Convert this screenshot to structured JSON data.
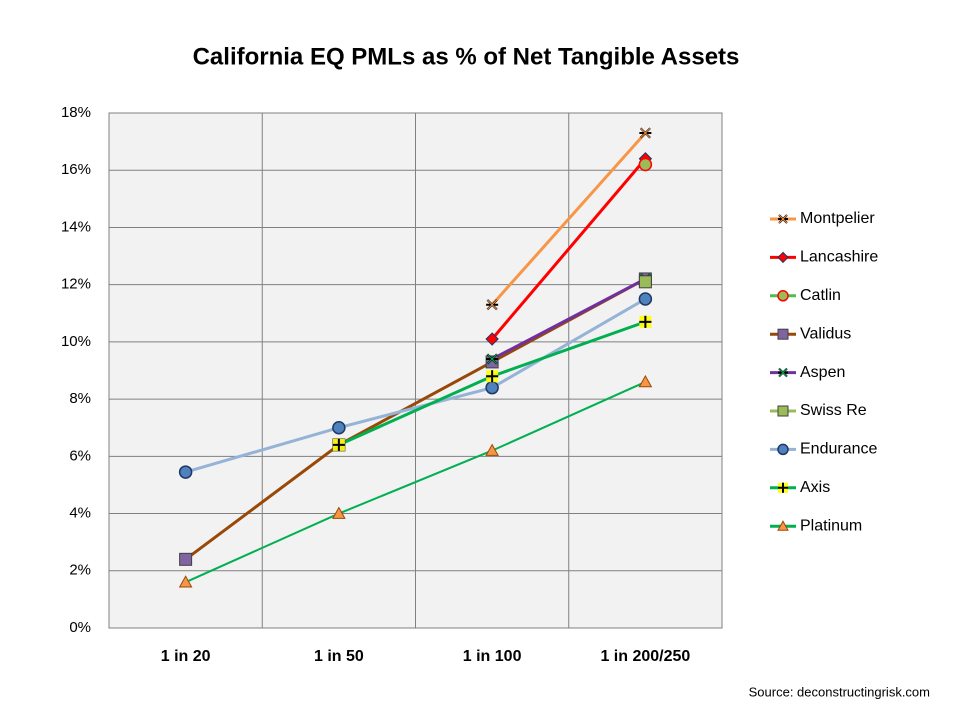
{
  "chart_data": {
    "type": "line",
    "title": "California EQ PMLs as % of Net Tangible Assets",
    "source": "Source: deconstructingrisk.com",
    "categories": [
      "1 in 20",
      "1 in 50",
      "1 in 100",
      "1 in 200/250"
    ],
    "ylim": [
      0,
      18
    ],
    "yticks": [
      {
        "value": 0,
        "label": "0%"
      },
      {
        "value": 2,
        "label": "2%"
      },
      {
        "value": 4,
        "label": "4%"
      },
      {
        "value": 6,
        "label": "6%"
      },
      {
        "value": 8,
        "label": "8%"
      },
      {
        "value": 10,
        "label": "10%"
      },
      {
        "value": 12,
        "label": "12%"
      },
      {
        "value": 14,
        "label": "14%"
      },
      {
        "value": 16,
        "label": "16%"
      },
      {
        "value": 18,
        "label": "18%"
      }
    ],
    "grid": true,
    "legend": "right",
    "series": [
      {
        "name": "Montpelier",
        "color": "#f79646",
        "marker": "star",
        "marker_color": "#f79646",
        "values": [
          null,
          null,
          11.3,
          17.3
        ]
      },
      {
        "name": "Lancashire",
        "color": "#ff0000",
        "marker": "diamond",
        "marker_color": "#ff0000",
        "values": [
          null,
          null,
          10.1,
          16.4
        ]
      },
      {
        "name": "Catlin",
        "color": "#4bbf4b",
        "marker": "circle",
        "marker_color": "#9bbb59",
        "values": [
          null,
          null,
          null,
          16.2
        ]
      },
      {
        "name": "Validus",
        "color": "#984807",
        "marker": "square",
        "marker_color": "#8064a2",
        "values": [
          2.4,
          6.4,
          9.3,
          12.2
        ]
      },
      {
        "name": "Aspen",
        "color": "#7030a0",
        "marker": "star",
        "marker_color": "#00b050",
        "values": [
          null,
          null,
          9.4,
          12.2
        ]
      },
      {
        "name": "Swiss Re",
        "color": "#9bbb59",
        "marker": "square",
        "marker_color": "#9bbb59",
        "values": [
          null,
          null,
          null,
          12.1
        ]
      },
      {
        "name": "Endurance",
        "color": "#95b3d7",
        "marker": "circle",
        "marker_color": "#4f81bd",
        "values": [
          5.45,
          7.0,
          8.4,
          11.5
        ]
      },
      {
        "name": "Axis",
        "color": "#00b050",
        "marker": "plus",
        "marker_color": "#ffff00",
        "values": [
          null,
          6.4,
          8.8,
          10.7
        ]
      },
      {
        "name": "Platinum",
        "color": "#00b050",
        "marker": "triangle",
        "marker_color": "#f79646",
        "values": [
          1.6,
          4.0,
          6.2,
          8.6
        ]
      }
    ]
  }
}
